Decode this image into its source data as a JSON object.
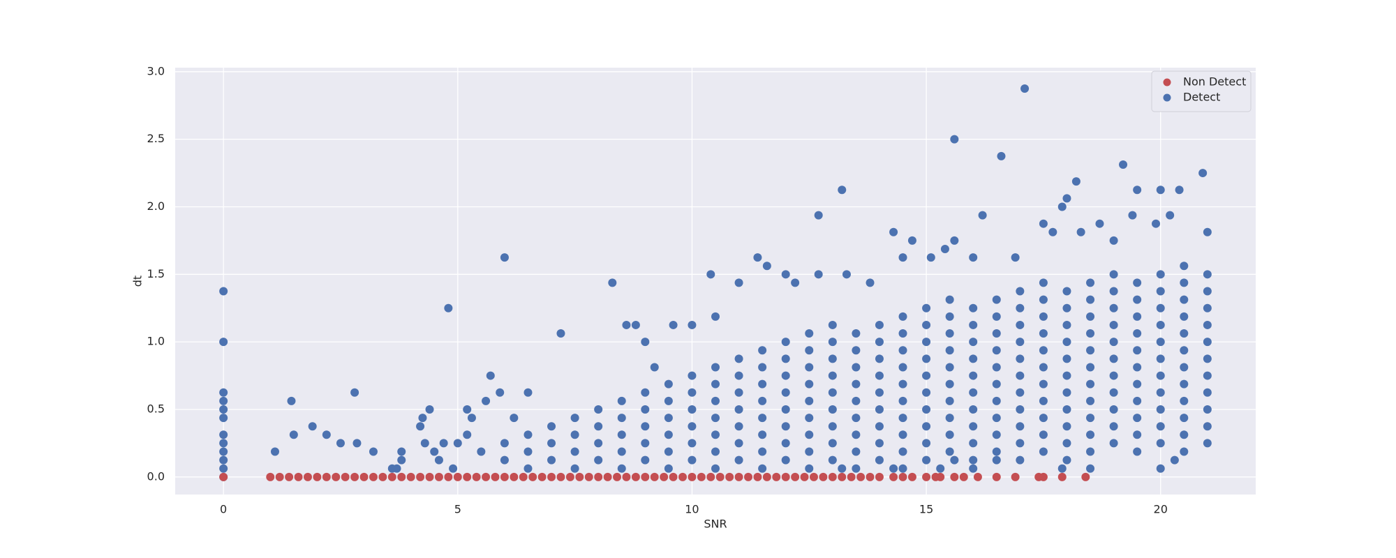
{
  "chart_data": {
    "type": "scatter",
    "xlabel": "SNR",
    "ylabel": "dt",
    "xlim": [
      -1.03,
      22.03
    ],
    "ylim": [
      -0.13,
      3.03
    ],
    "xticks": [
      0,
      5,
      10,
      15,
      20
    ],
    "yticks": [
      {
        "value": 0,
        "label": "0.0"
      },
      0.5,
      {
        "value": 1,
        "label": "1.0"
      },
      1.5,
      {
        "value": 2,
        "label": "2.0"
      },
      2.5,
      {
        "value": 3,
        "label": "3.0"
      }
    ],
    "grid": true,
    "background": "#eaeaf2",
    "legend": "upper right",
    "series": [
      {
        "name": "Non Detect",
        "color": "#c44e52",
        "x": [
          0,
          1,
          1.2,
          1.4,
          1.6,
          1.8,
          2,
          2.2,
          2.4,
          2.6,
          2.8,
          3,
          3.2,
          3.4,
          3.6,
          3.8,
          4,
          4.2,
          4.4,
          4.6,
          4.8,
          5,
          5.2,
          5.4,
          5.6,
          5.8,
          6,
          6.2,
          6.4,
          6.6,
          6.8,
          7,
          7.2,
          7.4,
          7.6,
          7.8,
          8,
          8.2,
          8.4,
          8.6,
          8.8,
          9,
          9.2,
          9.4,
          9.6,
          9.8,
          10,
          10.2,
          10.4,
          10.6,
          10.8,
          11,
          11.2,
          11.4,
          11.6,
          11.8,
          12,
          12.2,
          12.4,
          12.6,
          12.8,
          13,
          13.2,
          13.4,
          13.6,
          13.8,
          14,
          14.3,
          14.5,
          14.7,
          15,
          15.2,
          15.3,
          15.6,
          15.8,
          16.1,
          16.5,
          16.9,
          17.4,
          17.5,
          17.9,
          18.4
        ],
        "values": [
          0,
          0,
          0,
          0,
          0,
          0,
          0,
          0,
          0,
          0,
          0,
          0,
          0,
          0,
          0,
          0,
          0,
          0,
          0,
          0,
          0,
          0,
          0,
          0,
          0,
          0,
          0,
          0,
          0,
          0,
          0,
          0,
          0,
          0,
          0,
          0,
          0,
          0,
          0,
          0,
          0,
          0,
          0,
          0,
          0,
          0,
          0,
          0,
          0,
          0,
          0,
          0,
          0,
          0,
          0,
          0,
          0,
          0,
          0,
          0,
          0,
          0,
          0,
          0,
          0,
          0,
          0,
          0,
          0,
          0,
          0,
          0,
          0,
          0,
          0,
          0,
          0,
          0,
          0,
          0,
          0,
          0
        ]
      },
      {
        "name": "Detect",
        "color": "#4c72b0",
        "x": [
          0,
          0,
          0,
          0,
          0,
          0,
          0,
          0,
          0,
          0,
          0,
          0,
          1.1,
          1.45,
          1.5,
          1.9,
          2.2,
          2.5,
          2.8,
          2.85,
          3.2,
          3.6,
          3.7,
          3.8,
          3.8,
          4.2,
          4.25,
          4.4,
          4.3,
          4.5,
          4.6,
          4.7,
          4.8,
          4.9,
          5,
          5.2,
          5.3,
          5.2,
          5.5,
          5.6,
          5.7,
          5.9,
          6.2,
          6.5,
          6,
          6,
          6.5,
          6.5,
          6.5,
          7,
          7,
          7,
          7.5,
          7.5,
          7.5,
          7.5,
          8,
          8,
          8,
          8,
          8.5,
          8.5,
          8.5,
          8.5,
          8.5,
          9,
          9,
          9,
          9,
          9,
          9.5,
          9.5,
          9.5,
          9.5,
          9.5,
          9.5,
          10,
          10,
          10,
          10,
          10,
          10,
          10.5,
          10.5,
          10.5,
          10.5,
          10.5,
          10.5,
          10.5,
          11,
          11,
          11,
          11,
          11,
          11,
          11,
          11.5,
          11.5,
          11.5,
          11.5,
          11.5,
          11.5,
          11.5,
          11.5,
          12,
          12,
          12,
          12,
          12,
          12,
          12,
          12,
          12.5,
          12.5,
          12.5,
          12.5,
          12.5,
          12.5,
          12.5,
          12.5,
          12.5,
          13,
          13,
          13,
          13,
          13,
          13,
          13,
          13,
          13,
          13.5,
          13.5,
          13.5,
          13.5,
          13.5,
          13.5,
          13.5,
          13.5,
          13.5,
          14,
          14,
          14,
          14,
          14,
          14,
          14,
          14,
          14,
          14.5,
          14.5,
          14.5,
          14.5,
          14.5,
          14.5,
          14.5,
          14.5,
          14.5,
          14.5,
          15,
          15,
          15,
          15,
          15,
          15,
          15,
          15,
          15,
          15,
          15.5,
          15.5,
          15.5,
          15.5,
          15.5,
          15.5,
          15.5,
          15.5,
          15.5,
          15.5,
          16,
          16,
          16,
          16,
          16,
          16,
          16,
          16,
          16,
          16,
          16.5,
          16.5,
          16.5,
          16.5,
          16.5,
          16.5,
          16.5,
          16.5,
          16.5,
          16.5,
          17,
          17,
          17,
          17,
          17,
          17,
          17,
          17,
          17,
          17,
          17,
          17.5,
          17.5,
          17.5,
          17.5,
          17.5,
          17.5,
          17.5,
          17.5,
          17.5,
          17.5,
          17.5,
          18,
          18,
          18,
          18,
          18,
          18,
          18,
          18,
          18,
          18,
          18,
          18.5,
          18.5,
          18.5,
          18.5,
          18.5,
          18.5,
          18.5,
          18.5,
          18.5,
          18.5,
          18.5,
          19,
          19,
          19,
          19,
          19,
          19,
          19,
          19,
          19,
          19,
          19,
          19.5,
          19.5,
          19.5,
          19.5,
          19.5,
          19.5,
          19.5,
          19.5,
          19.5,
          19.5,
          19.5,
          20,
          20,
          20,
          20,
          20,
          20,
          20,
          20,
          20,
          20,
          20,
          20.5,
          20.5,
          20.5,
          20.5,
          20.5,
          20.5,
          20.5,
          20.5,
          20.5,
          20.5,
          20.5,
          20.5,
          21,
          21,
          21,
          21,
          21,
          21,
          21,
          21,
          21,
          21,
          21,
          6,
          7.2,
          8.3,
          8.6,
          8.8,
          9,
          9.2,
          9.6,
          10,
          10.4,
          10.5,
          11,
          11.4,
          11.6,
          12,
          12.2,
          12.7,
          12.7,
          13.2,
          13.3,
          13.8,
          14.3,
          14.5,
          14.7,
          15.1,
          15.6,
          15.6,
          15.4,
          16,
          16.2,
          16.6,
          16.9,
          17.1,
          17.5,
          17.9,
          18,
          18.2,
          18.7,
          19.2,
          19.5,
          19.4,
          19.9,
          20,
          20.4,
          20.9,
          21,
          20.2,
          19,
          18.3,
          17.7,
          13.2,
          14.3,
          15.3,
          16,
          17.9,
          18.5,
          20,
          20.3,
          15.6,
          16.5
        ],
        "values": [
          0,
          0.0625,
          0.125,
          0.1875,
          0.25,
          0.3125,
          0.4375,
          0.5,
          0.5625,
          0.625,
          1,
          1.375,
          0.1875,
          0.5625,
          0.3125,
          0.375,
          0.3125,
          0.25,
          0.625,
          0.25,
          0.1875,
          0.0625,
          0.0625,
          0.1875,
          0.125,
          0.375,
          0.4375,
          0.5,
          0.25,
          0.1875,
          0.125,
          0.25,
          1.25,
          0.0625,
          0.25,
          0.5,
          0.4375,
          0.3125,
          0.1875,
          0.5625,
          0.75,
          0.625,
          0.4375,
          0.625,
          0.125,
          0.25,
          0.0625,
          0.1875,
          0.3125,
          0.125,
          0.25,
          0.375,
          0.0625,
          0.1875,
          0.3125,
          0.4375,
          0.125,
          0.25,
          0.375,
          0.5,
          0.0625,
          0.1875,
          0.3125,
          0.4375,
          0.5625,
          0.125,
          0.25,
          0.375,
          0.5,
          0.625,
          0.0625,
          0.1875,
          0.3125,
          0.4375,
          0.5625,
          0.6875,
          0.125,
          0.25,
          0.375,
          0.5,
          0.625,
          0.75,
          0.0625,
          0.1875,
          0.3125,
          0.4375,
          0.5625,
          0.6875,
          0.8125,
          0.125,
          0.25,
          0.375,
          0.5,
          0.625,
          0.75,
          0.875,
          0.0625,
          0.1875,
          0.3125,
          0.4375,
          0.5625,
          0.6875,
          0.8125,
          0.9375,
          0.125,
          0.25,
          0.375,
          0.5,
          0.625,
          0.75,
          0.875,
          1,
          0.0625,
          0.1875,
          0.3125,
          0.4375,
          0.5625,
          0.6875,
          0.8125,
          0.9375,
          1.0625,
          0.125,
          0.25,
          0.375,
          0.5,
          0.625,
          0.75,
          0.875,
          1,
          1.125,
          0.0625,
          0.1875,
          0.3125,
          0.4375,
          0.5625,
          0.6875,
          0.8125,
          0.9375,
          1.0625,
          0.125,
          0.25,
          0.375,
          0.5,
          0.625,
          0.75,
          0.875,
          1,
          1.125,
          0.0625,
          0.1875,
          0.3125,
          0.4375,
          0.5625,
          0.6875,
          0.8125,
          0.9375,
          1.0625,
          1.1875,
          0.125,
          0.25,
          0.375,
          0.5,
          0.625,
          0.75,
          0.875,
          1,
          1.125,
          1.25,
          0.1875,
          0.3125,
          0.4375,
          0.5625,
          0.6875,
          0.8125,
          0.9375,
          1.0625,
          1.1875,
          1.3125,
          0.125,
          0.25,
          0.375,
          0.5,
          0.625,
          0.75,
          0.875,
          1,
          1.125,
          1.25,
          0.1875,
          0.3125,
          0.4375,
          0.5625,
          0.6875,
          0.8125,
          0.9375,
          1.0625,
          1.1875,
          1.3125,
          0.125,
          0.25,
          0.375,
          0.5,
          0.625,
          0.75,
          0.875,
          1,
          1.125,
          1.25,
          1.375,
          0.1875,
          0.3125,
          0.4375,
          0.5625,
          0.6875,
          0.8125,
          0.9375,
          1.0625,
          1.1875,
          1.3125,
          1.4375,
          0.125,
          0.25,
          0.375,
          0.5,
          0.625,
          0.75,
          0.875,
          1,
          1.125,
          1.25,
          1.375,
          0.1875,
          0.3125,
          0.4375,
          0.5625,
          0.6875,
          0.8125,
          0.9375,
          1.0625,
          1.1875,
          1.3125,
          1.4375,
          0.25,
          0.375,
          0.5,
          0.625,
          0.75,
          0.875,
          1,
          1.125,
          1.25,
          1.375,
          1.5,
          0.1875,
          0.3125,
          0.4375,
          0.5625,
          0.6875,
          0.8125,
          0.9375,
          1.0625,
          1.1875,
          1.3125,
          1.4375,
          0.25,
          0.375,
          0.5,
          0.625,
          0.75,
          0.875,
          1,
          1.125,
          1.25,
          1.375,
          1.5,
          0.1875,
          0.3125,
          0.4375,
          0.5625,
          0.6875,
          0.8125,
          0.9375,
          1.0625,
          1.1875,
          1.3125,
          1.4375,
          1.5625,
          0.25,
          0.375,
          0.5,
          0.625,
          0.75,
          0.875,
          1,
          1.125,
          1.25,
          1.375,
          1.5,
          1.625,
          1.0625,
          1.4375,
          1.125,
          1.125,
          1,
          0.8125,
          1.125,
          1.125,
          1.5,
          1.1875,
          1.4375,
          1.625,
          1.5625,
          1.5,
          1.4375,
          1.9375,
          1.5,
          2.125,
          1.5,
          1.4375,
          1.8125,
          1.625,
          1.75,
          1.625,
          2.5,
          1.75,
          1.6875,
          1.625,
          1.9375,
          2.375,
          1.625,
          2.875,
          1.875,
          2,
          2.0625,
          2.1875,
          1.875,
          2.3125,
          2.125,
          1.9375,
          1.875,
          2.125,
          2.125,
          2.25,
          1.8125,
          1.9375,
          1.75,
          1.8125,
          1.8125,
          0.0625,
          0.0625,
          0.0625,
          0.0625,
          0.0625,
          0.0625,
          0.0625,
          0.125,
          0.125,
          0.125
        ]
      }
    ]
  }
}
